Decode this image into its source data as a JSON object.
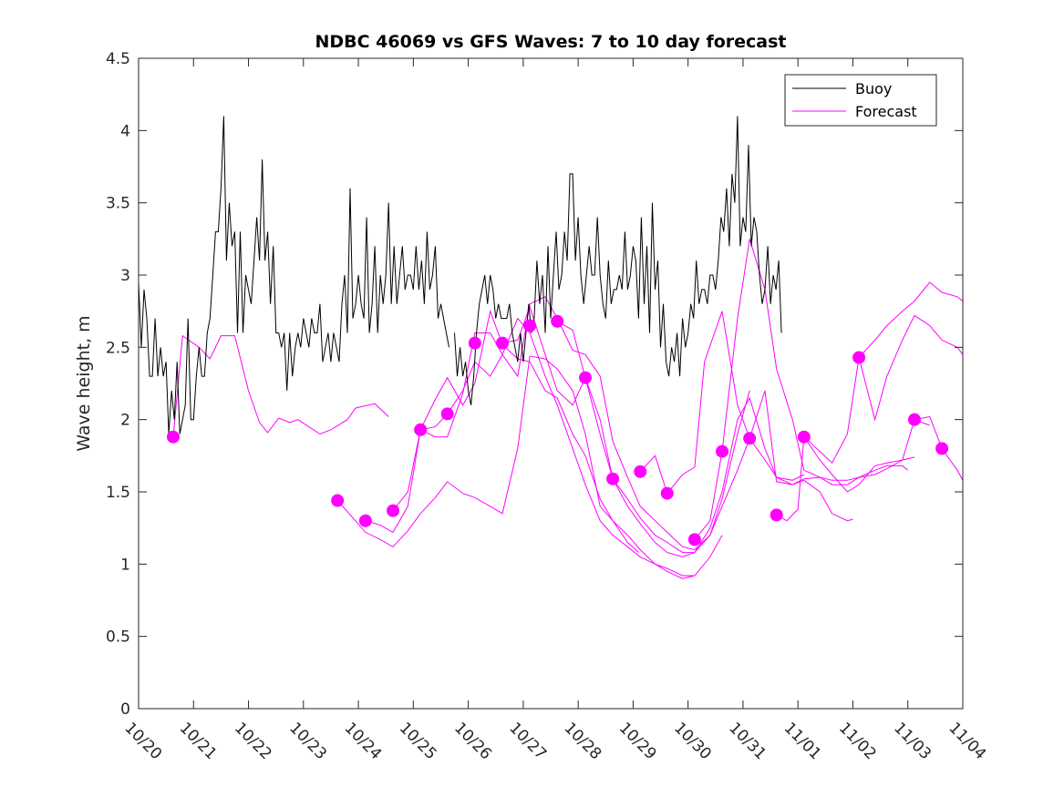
{
  "chart_data": {
    "type": "line",
    "title": "NDBC 46069 vs GFS Waves: 7 to 10 day forecast",
    "xlabel": "",
    "ylabel": "Wave height, m",
    "xlim_days": [
      0,
      15
    ],
    "ylim": [
      0,
      4.5
    ],
    "x_origin_label": "10/20",
    "x_ticks": [
      {
        "day": 0,
        "label": "10/20"
      },
      {
        "day": 1,
        "label": "10/21"
      },
      {
        "day": 2,
        "label": "10/22"
      },
      {
        "day": 3,
        "label": "10/23"
      },
      {
        "day": 4,
        "label": "10/24"
      },
      {
        "day": 5,
        "label": "10/25"
      },
      {
        "day": 6,
        "label": "10/26"
      },
      {
        "day": 7,
        "label": "10/27"
      },
      {
        "day": 8,
        "label": "10/28"
      },
      {
        "day": 9,
        "label": "10/29"
      },
      {
        "day": 10,
        "label": "10/30"
      },
      {
        "day": 11,
        "label": "10/31"
      },
      {
        "day": 12,
        "label": "11/01"
      },
      {
        "day": 13,
        "label": "11/02"
      },
      {
        "day": 14,
        "label": "11/03"
      },
      {
        "day": 15,
        "label": "11/04"
      }
    ],
    "y_ticks": [
      {
        "value": 0,
        "label": "0"
      },
      {
        "value": 0.5,
        "label": "0.5"
      },
      {
        "value": 1,
        "label": "1"
      },
      {
        "value": 1.5,
        "label": "1.5"
      },
      {
        "value": 2,
        "label": "2"
      },
      {
        "value": 2.5,
        "label": "2.5"
      },
      {
        "value": 3,
        "label": "3"
      },
      {
        "value": 3.5,
        "label": "3.5"
      },
      {
        "value": 4,
        "label": "4"
      },
      {
        "value": 4.5,
        "label": "4.5"
      }
    ],
    "grid": false,
    "legend": {
      "position": "top-right",
      "entries": [
        {
          "label": "Buoy",
          "color": "#000000"
        },
        {
          "label": "Forecast",
          "color": "#ff00ff"
        }
      ]
    },
    "series": [
      {
        "name": "Buoy",
        "color": "#000000",
        "segments": [
          [
            [
              0,
              2.95
            ],
            [
              0.05,
              2.5
            ],
            [
              0.1,
              2.9
            ],
            [
              0.15,
              2.7
            ],
            [
              0.2,
              2.3
            ],
            [
              0.25,
              2.3
            ],
            [
              0.3,
              2.7
            ],
            [
              0.35,
              2.3
            ],
            [
              0.4,
              2.5
            ],
            [
              0.45,
              2.3
            ],
            [
              0.5,
              2.4
            ],
            [
              0.55,
              1.9
            ],
            [
              0.6,
              2.2
            ],
            [
              0.65,
              2.0
            ],
            [
              0.7,
              2.4
            ],
            [
              0.75,
              1.9
            ],
            [
              0.8,
              2.0
            ],
            [
              0.85,
              2.1
            ],
            [
              0.9,
              2.7
            ],
            [
              0.95,
              2.0
            ],
            [
              1.0,
              2.0
            ],
            [
              1.05,
              2.3
            ],
            [
              1.1,
              2.5
            ],
            [
              1.15,
              2.3
            ],
            [
              1.2,
              2.3
            ],
            [
              1.25,
              2.6
            ],
            [
              1.3,
              2.7
            ],
            [
              1.35,
              3.0
            ],
            [
              1.4,
              3.3
            ],
            [
              1.45,
              3.3
            ],
            [
              1.5,
              3.6
            ],
            [
              1.55,
              4.1
            ],
            [
              1.6,
              3.1
            ],
            [
              1.65,
              3.5
            ],
            [
              1.7,
              3.2
            ],
            [
              1.75,
              3.3
            ],
            [
              1.8,
              2.6
            ],
            [
              1.85,
              3.3
            ],
            [
              1.9,
              2.6
            ],
            [
              1.95,
              3.0
            ],
            [
              2.0,
              2.9
            ],
            [
              2.05,
              2.8
            ],
            [
              2.1,
              3.1
            ],
            [
              2.15,
              3.4
            ],
            [
              2.2,
              3.1
            ],
            [
              2.25,
              3.8
            ],
            [
              2.3,
              3.1
            ],
            [
              2.35,
              3.3
            ],
            [
              2.4,
              2.8
            ],
            [
              2.45,
              3.2
            ],
            [
              2.5,
              2.6
            ],
            [
              2.55,
              2.6
            ],
            [
              2.6,
              2.5
            ],
            [
              2.65,
              2.6
            ],
            [
              2.7,
              2.2
            ],
            [
              2.75,
              2.6
            ],
            [
              2.8,
              2.3
            ],
            [
              2.85,
              2.5
            ],
            [
              2.9,
              2.6
            ],
            [
              2.95,
              2.5
            ],
            [
              3.0,
              2.7
            ],
            [
              3.05,
              2.6
            ],
            [
              3.1,
              2.5
            ],
            [
              3.15,
              2.7
            ],
            [
              3.2,
              2.6
            ],
            [
              3.25,
              2.6
            ],
            [
              3.3,
              2.8
            ],
            [
              3.35,
              2.4
            ],
            [
              3.4,
              2.5
            ],
            [
              3.45,
              2.6
            ],
            [
              3.5,
              2.4
            ],
            [
              3.55,
              2.6
            ],
            [
              3.6,
              2.5
            ],
            [
              3.65,
              2.4
            ],
            [
              3.7,
              2.8
            ],
            [
              3.75,
              3.0
            ],
            [
              3.8,
              2.6
            ],
            [
              3.85,
              3.6
            ],
            [
              3.9,
              2.7
            ],
            [
              3.95,
              2.8
            ],
            [
              4.0,
              3.0
            ],
            [
              4.05,
              2.8
            ],
            [
              4.1,
              2.7
            ],
            [
              4.15,
              3.4
            ],
            [
              4.2,
              2.6
            ],
            [
              4.25,
              2.8
            ],
            [
              4.3,
              3.2
            ],
            [
              4.35,
              2.6
            ],
            [
              4.4,
              3.0
            ],
            [
              4.45,
              2.8
            ],
            [
              4.5,
              3.0
            ],
            [
              4.55,
              3.5
            ],
            [
              4.6,
              2.8
            ],
            [
              4.65,
              3.2
            ],
            [
              4.7,
              2.8
            ],
            [
              4.75,
              3.0
            ],
            [
              4.8,
              3.2
            ],
            [
              4.85,
              2.9
            ],
            [
              4.9,
              3.0
            ],
            [
              4.95,
              3.0
            ],
            [
              5.0,
              2.9
            ],
            [
              5.05,
              3.2
            ],
            [
              5.1,
              2.9
            ],
            [
              5.15,
              3.1
            ],
            [
              5.2,
              2.8
            ],
            [
              5.25,
              3.3
            ],
            [
              5.3,
              2.9
            ],
            [
              5.35,
              3.0
            ],
            [
              5.4,
              3.2
            ],
            [
              5.45,
              2.7
            ],
            [
              5.5,
              2.8
            ],
            [
              5.55,
              2.7
            ],
            [
              5.6,
              2.6
            ],
            [
              5.65,
              2.5
            ]
          ],
          [
            [
              5.75,
              2.6
            ],
            [
              5.8,
              2.3
            ],
            [
              5.85,
              2.5
            ],
            [
              5.9,
              2.3
            ],
            [
              5.95,
              2.4
            ],
            [
              6.0,
              2.2
            ],
            [
              6.05,
              2.1
            ],
            [
              6.1,
              2.3
            ],
            [
              6.15,
              2.6
            ],
            [
              6.2,
              2.8
            ],
            [
              6.25,
              2.9
            ],
            [
              6.3,
              3.0
            ],
            [
              6.35,
              2.8
            ],
            [
              6.4,
              3.0
            ],
            [
              6.45,
              2.9
            ],
            [
              6.5,
              2.7
            ],
            [
              6.55,
              2.8
            ],
            [
              6.6,
              2.7
            ],
            [
              6.65,
              2.7
            ],
            [
              6.7,
              2.7
            ],
            [
              6.75,
              2.8
            ],
            [
              6.8,
              2.6
            ],
            [
              6.85,
              2.5
            ],
            [
              6.9,
              2.4
            ],
            [
              6.95,
              2.6
            ],
            [
              7.0,
              2.4
            ],
            [
              7.05,
              2.6
            ],
            [
              7.1,
              2.8
            ],
            [
              7.15,
              2.6
            ],
            [
              7.2,
              2.7
            ],
            [
              7.25,
              3.1
            ],
            [
              7.3,
              2.8
            ],
            [
              7.35,
              3.0
            ],
            [
              7.4,
              2.6
            ],
            [
              7.45,
              3.2
            ],
            [
              7.5,
              2.7
            ],
            [
              7.55,
              3.0
            ],
            [
              7.6,
              3.3
            ],
            [
              7.65,
              2.9
            ],
            [
              7.7,
              3.0
            ],
            [
              7.75,
              3.3
            ],
            [
              7.8,
              3.1
            ],
            [
              7.85,
              3.7
            ],
            [
              7.9,
              3.7
            ],
            [
              7.95,
              3.1
            ],
            [
              8.0,
              3.4
            ],
            [
              8.05,
              3.0
            ],
            [
              8.1,
              2.8
            ],
            [
              8.15,
              3.0
            ],
            [
              8.2,
              3.2
            ],
            [
              8.25,
              3.0
            ],
            [
              8.3,
              3.0
            ],
            [
              8.35,
              3.4
            ],
            [
              8.4,
              3.0
            ],
            [
              8.45,
              2.8
            ],
            [
              8.5,
              2.7
            ],
            [
              8.55,
              3.1
            ],
            [
              8.6,
              2.8
            ],
            [
              8.65,
              2.9
            ],
            [
              8.7,
              2.9
            ],
            [
              8.75,
              3.0
            ],
            [
              8.8,
              2.9
            ],
            [
              8.85,
              3.3
            ],
            [
              8.9,
              2.9
            ],
            [
              8.95,
              3.0
            ],
            [
              9.0,
              3.2
            ],
            [
              9.05,
              3.1
            ],
            [
              9.1,
              2.7
            ],
            [
              9.15,
              3.4
            ],
            [
              9.2,
              2.8
            ],
            [
              9.25,
              3.2
            ],
            [
              9.3,
              2.6
            ],
            [
              9.35,
              3.5
            ],
            [
              9.4,
              2.9
            ],
            [
              9.45,
              3.1
            ],
            [
              9.5,
              2.5
            ],
            [
              9.55,
              2.8
            ],
            [
              9.6,
              2.4
            ],
            [
              9.65,
              2.3
            ],
            [
              9.7,
              2.5
            ],
            [
              9.75,
              2.4
            ],
            [
              9.8,
              2.6
            ],
            [
              9.85,
              2.3
            ],
            [
              9.9,
              2.7
            ],
            [
              9.95,
              2.5
            ],
            [
              10.0,
              2.6
            ],
            [
              10.05,
              2.8
            ],
            [
              10.1,
              2.7
            ],
            [
              10.15,
              3.1
            ],
            [
              10.2,
              2.8
            ],
            [
              10.25,
              2.9
            ],
            [
              10.3,
              2.9
            ],
            [
              10.35,
              2.8
            ],
            [
              10.4,
              3.0
            ],
            [
              10.45,
              3.0
            ],
            [
              10.5,
              2.9
            ],
            [
              10.55,
              3.1
            ],
            [
              10.6,
              3.4
            ],
            [
              10.65,
              3.3
            ],
            [
              10.7,
              3.6
            ],
            [
              10.75,
              3.2
            ],
            [
              10.8,
              3.7
            ],
            [
              10.85,
              3.5
            ],
            [
              10.9,
              4.1
            ],
            [
              10.95,
              3.2
            ],
            [
              11.0,
              3.4
            ],
            [
              11.05,
              3.3
            ],
            [
              11.1,
              3.9
            ],
            [
              11.15,
              3.2
            ],
            [
              11.2,
              3.4
            ],
            [
              11.25,
              3.3
            ],
            [
              11.3,
              3.0
            ],
            [
              11.35,
              2.8
            ],
            [
              11.4,
              2.9
            ],
            [
              11.45,
              3.2
            ],
            [
              11.5,
              2.8
            ],
            [
              11.55,
              3.0
            ],
            [
              11.6,
              2.9
            ],
            [
              11.65,
              3.1
            ],
            [
              11.7,
              2.6
            ]
          ]
        ]
      }
    ],
    "buoy_note": "first segment approximated in day units relative to 10/20",
    "forecast_markers": [
      {
        "day": 0.63,
        "height": 1.88
      },
      {
        "day": 3.62,
        "height": 1.44
      },
      {
        "day": 4.13,
        "height": 1.3
      },
      {
        "day": 4.63,
        "height": 1.37
      },
      {
        "day": 5.13,
        "height": 1.93
      },
      {
        "day": 5.62,
        "height": 2.04
      },
      {
        "day": 6.12,
        "height": 2.53
      },
      {
        "day": 6.62,
        "height": 2.53
      },
      {
        "day": 7.12,
        "height": 2.65
      },
      {
        "day": 7.62,
        "height": 2.68
      },
      {
        "day": 8.13,
        "height": 2.29
      },
      {
        "day": 8.63,
        "height": 1.59
      },
      {
        "day": 9.13,
        "height": 1.64
      },
      {
        "day": 9.62,
        "height": 1.49
      },
      {
        "day": 10.12,
        "height": 1.17
      },
      {
        "day": 10.62,
        "height": 1.78
      },
      {
        "day": 11.12,
        "height": 1.87
      },
      {
        "day": 11.61,
        "height": 1.34
      },
      {
        "day": 12.11,
        "height": 1.88
      },
      {
        "day": 13.11,
        "height": 2.43
      },
      {
        "day": 14.12,
        "height": 2.0
      },
      {
        "day": 14.62,
        "height": 1.8
      }
    ]
  }
}
